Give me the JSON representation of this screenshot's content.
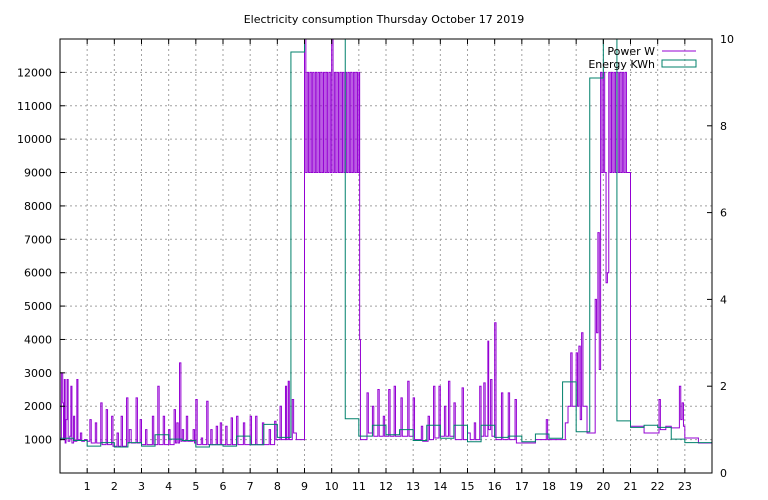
{
  "chart_data": {
    "type": "step",
    "title": "Electricity consumption Thursday October 17 2019",
    "xlabel": "",
    "ylabel": "",
    "y2label": "",
    "grid": true,
    "legend_position": "top-right",
    "x_ticks": [
      "1",
      "2",
      "3",
      "4",
      "5",
      "6",
      "7",
      "8",
      "9",
      "10",
      "11",
      "12",
      "13",
      "14",
      "15",
      "16",
      "17",
      "18",
      "19",
      "20",
      "21",
      "22",
      "23"
    ],
    "x_range": [
      0,
      24
    ],
    "y_range": [
      0,
      13000
    ],
    "y_ticks": [
      "1000",
      "2000",
      "3000",
      "4000",
      "5000",
      "6000",
      "7000",
      "8000",
      "9000",
      "10000",
      "11000",
      "12000"
    ],
    "y2_range": [
      0,
      10
    ],
    "y2_ticks": [
      "0",
      "2",
      "4",
      "6",
      "8",
      "10"
    ],
    "series": [
      {
        "name": "Power W",
        "axis": "y",
        "color": "#9400d3",
        "style": "steps",
        "points": [
          [
            0.0,
            1000
          ],
          [
            0.05,
            3000
          ],
          [
            0.1,
            2100
          ],
          [
            0.13,
            1000
          ],
          [
            0.16,
            2800
          ],
          [
            0.19,
            900
          ],
          [
            0.22,
            1600
          ],
          [
            0.26,
            2800
          ],
          [
            0.3,
            950
          ],
          [
            0.36,
            1100
          ],
          [
            0.4,
            2600
          ],
          [
            0.44,
            900
          ],
          [
            0.5,
            1700
          ],
          [
            0.54,
            950
          ],
          [
            0.62,
            2800
          ],
          [
            0.66,
            1000
          ],
          [
            0.75,
            1200
          ],
          [
            0.8,
            950
          ],
          [
            0.9,
            1000
          ],
          [
            1.0,
            950
          ],
          [
            1.1,
            1600
          ],
          [
            1.15,
            900
          ],
          [
            1.3,
            1500
          ],
          [
            1.35,
            900
          ],
          [
            1.5,
            2100
          ],
          [
            1.55,
            850
          ],
          [
            1.7,
            1900
          ],
          [
            1.75,
            850
          ],
          [
            1.9,
            1700
          ],
          [
            1.95,
            800
          ],
          [
            2.1,
            1200
          ],
          [
            2.15,
            800
          ],
          [
            2.25,
            1700
          ],
          [
            2.3,
            800
          ],
          [
            2.45,
            2250
          ],
          [
            2.5,
            900
          ],
          [
            2.55,
            1300
          ],
          [
            2.62,
            900
          ],
          [
            2.8,
            2250
          ],
          [
            2.85,
            900
          ],
          [
            2.95,
            1600
          ],
          [
            3.0,
            850
          ],
          [
            3.15,
            1300
          ],
          [
            3.2,
            850
          ],
          [
            3.4,
            1700
          ],
          [
            3.45,
            850
          ],
          [
            3.6,
            2600
          ],
          [
            3.65,
            850
          ],
          [
            3.8,
            1700
          ],
          [
            3.85,
            850
          ],
          [
            4.0,
            1300
          ],
          [
            4.05,
            850
          ],
          [
            4.2,
            1900
          ],
          [
            4.25,
            900
          ],
          [
            4.3,
            1500
          ],
          [
            4.35,
            900
          ],
          [
            4.4,
            3300
          ],
          [
            4.45,
            950
          ],
          [
            4.5,
            1300
          ],
          [
            4.55,
            950
          ],
          [
            4.65,
            1700
          ],
          [
            4.7,
            950
          ],
          [
            4.9,
            1300
          ],
          [
            4.95,
            900
          ],
          [
            5.0,
            2200
          ],
          [
            5.05,
            850
          ],
          [
            5.2,
            1050
          ],
          [
            5.25,
            850
          ],
          [
            5.4,
            2150
          ],
          [
            5.45,
            850
          ],
          [
            5.55,
            1300
          ],
          [
            5.6,
            850
          ],
          [
            5.75,
            1400
          ],
          [
            5.8,
            850
          ],
          [
            5.9,
            1500
          ],
          [
            5.95,
            850
          ],
          [
            6.1,
            1400
          ],
          [
            6.15,
            850
          ],
          [
            6.3,
            1650
          ],
          [
            6.35,
            850
          ],
          [
            6.5,
            1700
          ],
          [
            6.55,
            850
          ],
          [
            6.75,
            1500
          ],
          [
            6.8,
            850
          ],
          [
            7.0,
            1700
          ],
          [
            7.05,
            850
          ],
          [
            7.2,
            1700
          ],
          [
            7.25,
            850
          ],
          [
            7.45,
            1500
          ],
          [
            7.5,
            850
          ],
          [
            7.7,
            1300
          ],
          [
            7.75,
            850
          ],
          [
            7.9,
            1550
          ],
          [
            7.95,
            1000
          ],
          [
            8.1,
            2000
          ],
          [
            8.15,
            1000
          ],
          [
            8.3,
            2600
          ],
          [
            8.34,
            1000
          ],
          [
            8.4,
            2750
          ],
          [
            8.44,
            1000
          ],
          [
            8.55,
            2200
          ],
          [
            8.6,
            1200
          ],
          [
            8.7,
            1000
          ],
          [
            9.0,
            13000
          ],
          [
            9.05,
            9000
          ],
          [
            9.1,
            12000
          ],
          [
            9.15,
            9000
          ],
          [
            9.2,
            12000
          ],
          [
            9.25,
            9000
          ],
          [
            9.3,
            12000
          ],
          [
            9.35,
            9000
          ],
          [
            9.4,
            12000
          ],
          [
            9.45,
            9000
          ],
          [
            9.5,
            12000
          ],
          [
            9.55,
            9000
          ],
          [
            9.6,
            12000
          ],
          [
            9.65,
            9000
          ],
          [
            9.7,
            12000
          ],
          [
            9.75,
            9000
          ],
          [
            9.8,
            12000
          ],
          [
            9.85,
            9000
          ],
          [
            9.9,
            12000
          ],
          [
            9.95,
            9000
          ],
          [
            10.0,
            13000
          ],
          [
            10.05,
            9000
          ],
          [
            10.1,
            12000
          ],
          [
            10.15,
            9000
          ],
          [
            10.2,
            12000
          ],
          [
            10.25,
            9000
          ],
          [
            10.3,
            12000
          ],
          [
            10.35,
            9000
          ],
          [
            10.4,
            12000
          ],
          [
            10.45,
            9000
          ],
          [
            10.5,
            12000
          ],
          [
            10.55,
            9000
          ],
          [
            10.6,
            12000
          ],
          [
            10.65,
            9000
          ],
          [
            10.7,
            12000
          ],
          [
            10.75,
            9000
          ],
          [
            10.8,
            12000
          ],
          [
            10.85,
            9000
          ],
          [
            10.9,
            12000
          ],
          [
            10.95,
            9000
          ],
          [
            11.0,
            12000
          ],
          [
            11.03,
            4000
          ],
          [
            11.06,
            1000
          ],
          [
            11.3,
            2400
          ],
          [
            11.35,
            1200
          ],
          [
            11.5,
            2000
          ],
          [
            11.55,
            1100
          ],
          [
            11.7,
            2500
          ],
          [
            11.75,
            1100
          ],
          [
            11.9,
            1700
          ],
          [
            11.95,
            1100
          ],
          [
            12.1,
            2500
          ],
          [
            12.15,
            1100
          ],
          [
            12.3,
            2600
          ],
          [
            12.35,
            1100
          ],
          [
            12.55,
            2250
          ],
          [
            12.6,
            1100
          ],
          [
            12.8,
            2750
          ],
          [
            12.85,
            1100
          ],
          [
            13.0,
            2250
          ],
          [
            13.05,
            1000
          ],
          [
            13.3,
            1400
          ],
          [
            13.35,
            950
          ],
          [
            13.55,
            1700
          ],
          [
            13.6,
            1000
          ],
          [
            13.75,
            2600
          ],
          [
            13.8,
            1050
          ],
          [
            13.95,
            2600
          ],
          [
            14.0,
            1100
          ],
          [
            14.15,
            2000
          ],
          [
            14.2,
            1100
          ],
          [
            14.3,
            2750
          ],
          [
            14.35,
            1100
          ],
          [
            14.5,
            2100
          ],
          [
            14.55,
            1000
          ],
          [
            14.8,
            2550
          ],
          [
            14.85,
            1000
          ],
          [
            15.0,
            1200
          ],
          [
            15.1,
            1000
          ],
          [
            15.25,
            1500
          ],
          [
            15.3,
            1000
          ],
          [
            15.45,
            2600
          ],
          [
            15.5,
            1100
          ],
          [
            15.6,
            2700
          ],
          [
            15.65,
            1100
          ],
          [
            15.75,
            3950
          ],
          [
            15.78,
            1300
          ],
          [
            15.85,
            2800
          ],
          [
            15.9,
            1100
          ],
          [
            16.0,
            4500
          ],
          [
            16.05,
            1000
          ],
          [
            16.25,
            2400
          ],
          [
            16.3,
            1000
          ],
          [
            16.5,
            2400
          ],
          [
            16.55,
            1000
          ],
          [
            16.75,
            2200
          ],
          [
            16.8,
            900
          ],
          [
            17.0,
            900
          ],
          [
            17.5,
            1000
          ],
          [
            17.9,
            1600
          ],
          [
            17.95,
            1000
          ],
          [
            18.2,
            1000
          ],
          [
            18.6,
            1500
          ],
          [
            18.7,
            2000
          ],
          [
            18.8,
            3600
          ],
          [
            18.85,
            2000
          ],
          [
            19.0,
            3600
          ],
          [
            19.05,
            2000
          ],
          [
            19.1,
            3800
          ],
          [
            19.15,
            1600
          ],
          [
            19.2,
            4200
          ],
          [
            19.25,
            2000
          ],
          [
            19.4,
            1200
          ],
          [
            19.7,
            5200
          ],
          [
            19.75,
            4200
          ],
          [
            19.8,
            7200
          ],
          [
            19.85,
            3100
          ],
          [
            19.9,
            12000
          ],
          [
            19.95,
            9000
          ],
          [
            20.0,
            12000
          ],
          [
            20.05,
            9000
          ],
          [
            20.1,
            5700
          ],
          [
            20.15,
            6000
          ],
          [
            20.2,
            12000
          ],
          [
            20.25,
            9000
          ],
          [
            20.3,
            12000
          ],
          [
            20.35,
            9000
          ],
          [
            20.4,
            12000
          ],
          [
            20.45,
            9000
          ],
          [
            20.5,
            12000
          ],
          [
            20.55,
            9000
          ],
          [
            20.6,
            12000
          ],
          [
            20.65,
            9000
          ],
          [
            20.7,
            12000
          ],
          [
            20.75,
            9000
          ],
          [
            20.8,
            12000
          ],
          [
            20.85,
            9000
          ],
          [
            20.95,
            9000
          ],
          [
            21.0,
            1400
          ],
          [
            21.5,
            1200
          ],
          [
            22.0,
            1200
          ],
          [
            22.05,
            2200
          ],
          [
            22.1,
            1300
          ],
          [
            22.3,
            1400
          ],
          [
            22.5,
            1350
          ],
          [
            22.8,
            2600
          ],
          [
            22.85,
            1600
          ],
          [
            22.9,
            2100
          ],
          [
            22.95,
            1400
          ],
          [
            23.0,
            1050
          ],
          [
            23.5,
            900
          ],
          [
            23.98,
            900
          ]
        ]
      },
      {
        "name": "Energy KWh",
        "axis": "y2",
        "color": "#00806b",
        "style": "fsteps",
        "points": [
          [
            0.0,
            0.75
          ],
          [
            0.5,
            0.8
          ],
          [
            1.0,
            0.75
          ],
          [
            1.5,
            0.62
          ],
          [
            2.0,
            0.7
          ],
          [
            2.5,
            0.6
          ],
          [
            3.0,
            0.7
          ],
          [
            3.5,
            0.62
          ],
          [
            4.0,
            0.88
          ],
          [
            4.5,
            0.78
          ],
          [
            5.0,
            0.75
          ],
          [
            5.5,
            0.6
          ],
          [
            6.0,
            0.65
          ],
          [
            6.5,
            0.62
          ],
          [
            7.0,
            0.85
          ],
          [
            7.5,
            0.65
          ],
          [
            8.0,
            1.12
          ],
          [
            8.5,
            0.82
          ],
          [
            9.0,
            9.7
          ],
          [
            9.5,
            10.0
          ],
          [
            10.0,
            10.0
          ],
          [
            10.5,
            10.0
          ],
          [
            11.0,
            1.25
          ],
          [
            11.5,
            0.85
          ],
          [
            12.0,
            1.1
          ],
          [
            12.5,
            0.88
          ],
          [
            13.0,
            1.0
          ],
          [
            13.5,
            0.75
          ],
          [
            14.0,
            1.1
          ],
          [
            14.5,
            0.8
          ],
          [
            15.0,
            1.1
          ],
          [
            15.5,
            0.72
          ],
          [
            16.0,
            1.1
          ],
          [
            16.5,
            0.82
          ],
          [
            17.0,
            0.85
          ],
          [
            17.5,
            0.72
          ],
          [
            18.0,
            0.9
          ],
          [
            18.5,
            0.8
          ],
          [
            19.0,
            2.1
          ],
          [
            19.5,
            0.95
          ],
          [
            20.0,
            9.1
          ],
          [
            20.5,
            10.0
          ],
          [
            21.0,
            1.2
          ],
          [
            21.5,
            1.05
          ],
          [
            22.0,
            1.1
          ],
          [
            22.5,
            1.05
          ],
          [
            23.0,
            0.78
          ],
          [
            23.5,
            0.7
          ],
          [
            24.0,
            0.7
          ]
        ]
      }
    ]
  }
}
